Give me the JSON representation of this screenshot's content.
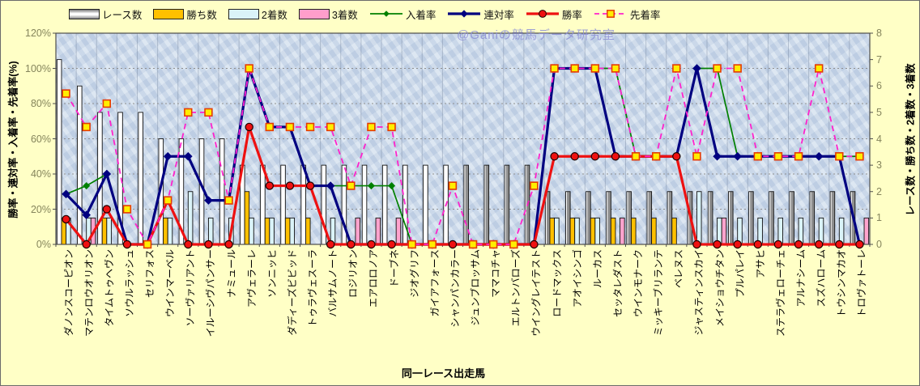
{
  "watermark": "@Ganiの競馬データ研究室",
  "axes": {
    "left_title": "勝率・連対率・入着率・先着率(%)",
    "right_title": "レース数・勝ち数・2着数・3着数",
    "x_title": "同一レース出走馬",
    "left_ticks": [
      "0%",
      "20%",
      "40%",
      "60%",
      "80%",
      "100%",
      "120%"
    ],
    "right_ticks": [
      "0",
      "1",
      "2",
      "3",
      "4",
      "5",
      "6",
      "7",
      "8"
    ]
  },
  "legend": {
    "items": [
      {
        "label": "レース数",
        "kind": "bar",
        "fill": "gradient-gray"
      },
      {
        "label": "勝ち数",
        "kind": "bar",
        "fill": "#ffc000"
      },
      {
        "label": "2着数",
        "kind": "bar",
        "fill": "#daf3f8"
      },
      {
        "label": "3着数",
        "kind": "bar",
        "fill": "#ff9ecb"
      },
      {
        "label": "入着率",
        "kind": "line",
        "color": "#008000",
        "marker": "diamond",
        "width": 1.7,
        "dashed": false
      },
      {
        "label": "連対率",
        "kind": "line",
        "color": "#000080",
        "marker": "diamond",
        "width": 3.2,
        "dashed": false
      },
      {
        "label": "勝率",
        "kind": "line",
        "color": "#ee1111",
        "marker": "circle",
        "width": 3.2,
        "dashed": false
      },
      {
        "label": "先着率",
        "kind": "line",
        "color": "#ff22cc",
        "marker": "square",
        "width": 1.8,
        "dashed": true
      }
    ]
  },
  "chart_data": {
    "type": "bar",
    "note": "combo chart: count bars on right axis, percentage lines on left axis",
    "xlabel": "同一レース出走馬",
    "ylabel_left": "勝率・連対率・入着率・先着率(%)",
    "ylabel_right": "レース数・勝ち数・2着数・3着数",
    "ylim_left": [
      0,
      120
    ],
    "ylim_right": [
      0,
      8
    ],
    "grid": true,
    "legend_position": "top",
    "categories": [
      "ダノンスコーピオン",
      "マテンロウオリオン",
      "タイムトゥヘヴン",
      "ソウルラッシュ",
      "セリフォス",
      "ウインマーベル",
      "ソーヴァリアント",
      "イルーシヴパンサー",
      "ナミュール",
      "アヴェラーレ",
      "ソンニッヒ",
      "ダディーズビビッド",
      "トゥラヴェスーラ",
      "バルサムノート",
      "ロジリオン",
      "エアロロノア",
      "ドーブネ",
      "ジオグリフ",
      "ガイアフォース",
      "シャンパンカラー",
      "ジュンブロッサム",
      "ママコチャ",
      "エルトンバローズ",
      "ウイングレイテスト",
      "ロードマックス",
      "アオイシンゴ",
      "ルーカス",
      "セッタレダスト",
      "ウインモナーク",
      "ミッキーブリランテ",
      "ベレヌス",
      "ジャスティンスカイ",
      "メイショウチタン",
      "プルパレイ",
      "アサヒ",
      "ステラヴェローチェ",
      "アルナシーム",
      "スズハローム",
      "トウシンマカオ",
      "トロヴァトーレ"
    ],
    "series": [
      {
        "name": "レース数",
        "render": "bar",
        "axis": "right",
        "values": [
          7,
          6,
          5,
          5,
          5,
          4,
          4,
          4,
          4,
          3,
          3,
          3,
          3,
          3,
          3,
          3,
          3,
          3,
          3,
          3,
          3,
          3,
          3,
          3,
          2,
          2,
          2,
          2,
          2,
          2,
          2,
          2,
          2,
          2,
          2,
          2,
          2,
          2,
          2,
          2
        ],
        "bar_colors": [
          "white",
          "white",
          "white",
          "white",
          "white",
          "white",
          "white",
          "white",
          "white",
          "white",
          "white",
          "white",
          "white",
          "white",
          "white",
          "white",
          "white",
          "white",
          "white",
          "white",
          "gray",
          "gray",
          "gray",
          "gray",
          "gray",
          "gray",
          "gray",
          "gray",
          "gray",
          "gray",
          "gray",
          "gray",
          "gray",
          "gray",
          "gray",
          "gray",
          "gray",
          "gray",
          "gray",
          "gray"
        ]
      },
      {
        "name": "勝ち数",
        "render": "bar",
        "axis": "right",
        "color": "#ffc000",
        "values": [
          1,
          0,
          1,
          0,
          0,
          1,
          0,
          0,
          0,
          2,
          1,
          1,
          1,
          0,
          0,
          0,
          0,
          0,
          0,
          0,
          0,
          0,
          0,
          0,
          1,
          1,
          1,
          1,
          1,
          1,
          1,
          0,
          0,
          0,
          0,
          0,
          0,
          0,
          0,
          0
        ]
      },
      {
        "name": "2着数",
        "render": "bar",
        "axis": "right",
        "color": "#daf3f8",
        "values": [
          1,
          1,
          1,
          0,
          0,
          1,
          2,
          1,
          1,
          1,
          1,
          1,
          0,
          1,
          0,
          0,
          0,
          0,
          0,
          0,
          0,
          0,
          0,
          0,
          1,
          1,
          1,
          0,
          0,
          0,
          0,
          2,
          1,
          1,
          1,
          1,
          1,
          1,
          1,
          0
        ]
      },
      {
        "name": "3着数",
        "render": "bar",
        "axis": "right",
        "color": "#ffa3cd",
        "values": [
          0,
          1,
          0,
          0,
          0,
          0,
          0,
          0,
          0,
          0,
          0,
          0,
          0,
          0,
          1,
          1,
          1,
          0,
          0,
          0,
          0,
          0,
          0,
          0,
          0,
          0,
          0,
          1,
          0,
          0,
          0,
          0,
          1,
          0,
          0,
          0,
          0,
          0,
          0,
          1
        ]
      },
      {
        "name": "入着率",
        "render": "line",
        "axis": "left",
        "color": "#008000",
        "marker": "diamond",
        "width": 1.7,
        "dashed": false,
        "values": [
          28.6,
          33.3,
          40,
          0,
          0,
          50,
          50,
          25,
          25,
          100,
          66.7,
          66.7,
          33.3,
          33.3,
          33.3,
          33.3,
          33.3,
          0,
          0,
          0,
          0,
          0,
          0,
          0,
          100,
          100,
          100,
          100,
          50,
          50,
          50,
          100,
          100,
          50,
          50,
          50,
          50,
          50,
          50,
          50
        ]
      },
      {
        "name": "連対率",
        "render": "line",
        "axis": "left",
        "color": "#000080",
        "marker": "diamond",
        "width": 3.2,
        "dashed": false,
        "values": [
          28.6,
          16.7,
          40,
          0,
          0,
          50,
          50,
          25,
          25,
          100,
          66.7,
          66.7,
          33.3,
          33.3,
          0,
          0,
          0,
          0,
          0,
          0,
          0,
          0,
          0,
          0,
          100,
          100,
          100,
          50,
          50,
          50,
          50,
          100,
          50,
          50,
          50,
          50,
          50,
          50,
          50,
          0
        ]
      },
      {
        "name": "勝率",
        "render": "line",
        "axis": "left",
        "color": "#ee1111",
        "marker": "circle",
        "width": 3.2,
        "dashed": false,
        "values": [
          14.3,
          0,
          20,
          0,
          0,
          25,
          0,
          0,
          0,
          66.7,
          33.3,
          33.3,
          33.3,
          0,
          0,
          0,
          0,
          0,
          0,
          0,
          0,
          0,
          0,
          0,
          50,
          50,
          50,
          50,
          50,
          50,
          50,
          0,
          0,
          0,
          0,
          0,
          0,
          0,
          0,
          0
        ]
      },
      {
        "name": "先着率",
        "render": "line",
        "axis": "left",
        "color": "#ff22cc",
        "marker": "square",
        "width": 1.8,
        "dashed": true,
        "values": [
          85.7,
          66.7,
          80,
          20,
          0,
          25,
          75,
          75,
          25,
          100,
          66.7,
          66.7,
          66.7,
          66.7,
          33.3,
          66.7,
          66.7,
          0,
          0,
          33.3,
          0,
          0,
          0,
          33.3,
          100,
          100,
          100,
          100,
          50,
          50,
          100,
          50,
          100,
          100,
          50,
          50,
          50,
          100,
          50,
          50
        ]
      }
    ]
  }
}
